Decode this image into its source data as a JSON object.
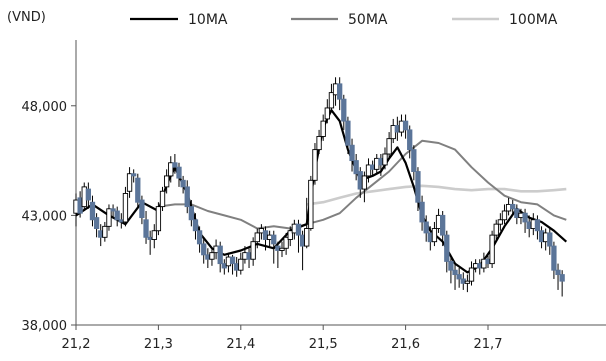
{
  "chart_data": {
    "type": "line",
    "unit_label": "(VND)",
    "x_ticks": [
      "21,2",
      "21,3",
      "21,4",
      "21,5",
      "21,6",
      "21,7"
    ],
    "y_ticks": [
      "38,000",
      "43,000",
      "48,000"
    ],
    "ylim": [
      38000,
      51000
    ],
    "xlim": [
      0,
      6.4
    ],
    "grid": false,
    "legend_position": "top",
    "candle_color": "#5b7599",
    "candles": [
      [
        0.0,
        43100,
        43700,
        42500,
        44000
      ],
      [
        0.05,
        43800,
        43100,
        42900,
        44100
      ],
      [
        0.1,
        43400,
        44300,
        43200,
        44500
      ],
      [
        0.15,
        44200,
        43700,
        43300,
        44500
      ],
      [
        0.2,
        43600,
        42800,
        42500,
        43900
      ],
      [
        0.25,
        42900,
        42400,
        42000,
        43100
      ],
      [
        0.3,
        42300,
        42000,
        41600,
        42600
      ],
      [
        0.35,
        42000,
        42500,
        41800,
        42700
      ],
      [
        0.4,
        42500,
        43300,
        42300,
        43500
      ],
      [
        0.45,
        43300,
        43200,
        42900,
        43500
      ],
      [
        0.5,
        43200,
        42800,
        42500,
        43400
      ],
      [
        0.55,
        42800,
        42700,
        42400,
        43100
      ],
      [
        0.6,
        42700,
        44000,
        42500,
        44300
      ],
      [
        0.65,
        44100,
        44900,
        43800,
        45200
      ],
      [
        0.7,
        44900,
        44800,
        44500,
        45100
      ],
      [
        0.75,
        44700,
        43600,
        43300,
        44900
      ],
      [
        0.8,
        43700,
        42900,
        42600,
        43900
      ],
      [
        0.85,
        42800,
        42000,
        41700,
        43200
      ],
      [
        0.9,
        42000,
        41900,
        41200,
        42300
      ],
      [
        0.95,
        41900,
        42300,
        41500,
        42600
      ],
      [
        1.0,
        42300,
        43400,
        42100,
        43600
      ],
      [
        1.05,
        43400,
        44100,
        43200,
        44300
      ],
      [
        1.1,
        44300,
        44800,
        44000,
        45100
      ],
      [
        1.15,
        44800,
        45400,
        44500,
        45700
      ],
      [
        1.2,
        45400,
        45200,
        44900,
        45800
      ],
      [
        1.25,
        45200,
        44700,
        44300,
        45400
      ],
      [
        1.3,
        44600,
        44300,
        44000,
        44800
      ],
      [
        1.35,
        44300,
        43400,
        43100,
        44600
      ],
      [
        1.4,
        43400,
        42800,
        42500,
        43700
      ],
      [
        1.45,
        42800,
        42300,
        41900,
        43100
      ],
      [
        1.5,
        42300,
        41700,
        41300,
        42500
      ],
      [
        1.55,
        41700,
        41200,
        40800,
        42000
      ],
      [
        1.6,
        41200,
        41000,
        40600,
        41500
      ],
      [
        1.65,
        41000,
        41300,
        40700,
        41500
      ],
      [
        1.7,
        41300,
        41600,
        41000,
        41900
      ],
      [
        1.75,
        41600,
        40800,
        40400,
        41800
      ],
      [
        1.8,
        40800,
        40600,
        40300,
        41000
      ],
      [
        1.85,
        40700,
        41100,
        40400,
        41300
      ],
      [
        1.9,
        41100,
        40800,
        40300,
        41200
      ],
      [
        1.95,
        40800,
        40500,
        40200,
        41100
      ],
      [
        2.0,
        40500,
        41000,
        40300,
        41300
      ],
      [
        2.05,
        41000,
        41300,
        40800,
        41600
      ],
      [
        2.1,
        41300,
        41000,
        40600,
        41500
      ],
      [
        2.15,
        41000,
        41800,
        40700,
        42000
      ],
      [
        2.2,
        41800,
        42200,
        41500,
        42400
      ],
      [
        2.25,
        42200,
        42400,
        41900,
        42600
      ],
      [
        2.3,
        42300,
        41900,
        41400,
        42500
      ],
      [
        2.35,
        41900,
        42100,
        41600,
        42300
      ],
      [
        2.4,
        42100,
        41700,
        40800,
        42300
      ],
      [
        2.45,
        41600,
        41400,
        40600,
        41800
      ],
      [
        2.5,
        41400,
        41500,
        41100,
        41800
      ],
      [
        2.55,
        41500,
        42000,
        41200,
        42200
      ],
      [
        2.6,
        41900,
        42300,
        41600,
        42500
      ],
      [
        2.65,
        42200,
        42600,
        41900,
        42800
      ],
      [
        2.7,
        42600,
        42100,
        41300,
        42800
      ],
      [
        2.75,
        42100,
        41600,
        40500,
        42300
      ],
      [
        2.8,
        41600,
        42400,
        41500,
        43800
      ],
      [
        2.85,
        42400,
        44600,
        42300,
        44800
      ],
      [
        2.9,
        44600,
        46000,
        44400,
        46300
      ],
      [
        2.95,
        46000,
        46600,
        45800,
        46900
      ],
      [
        3.0,
        46600,
        47300,
        46400,
        47600
      ],
      [
        3.05,
        47400,
        47900,
        47200,
        48300
      ],
      [
        3.1,
        47900,
        48600,
        47700,
        49000
      ],
      [
        3.15,
        48500,
        49000,
        48000,
        49300
      ],
      [
        3.2,
        49000,
        48300,
        47800,
        49300
      ],
      [
        3.25,
        48300,
        47300,
        46900,
        48500
      ],
      [
        3.3,
        47300,
        46200,
        45800,
        47500
      ],
      [
        3.35,
        46200,
        45500,
        45000,
        46500
      ],
      [
        3.4,
        45500,
        44900,
        44600,
        45800
      ],
      [
        3.45,
        45000,
        44200,
        43800,
        45200
      ],
      [
        3.5,
        44200,
        44800,
        43600,
        45000
      ],
      [
        3.55,
        44800,
        45300,
        44500,
        45600
      ],
      [
        3.6,
        45300,
        45100,
        44800,
        45500
      ],
      [
        3.65,
        45100,
        45600,
        44900,
        45800
      ],
      [
        3.7,
        45600,
        45300,
        44800,
        45800
      ],
      [
        3.75,
        45300,
        45800,
        45100,
        46100
      ],
      [
        3.8,
        45800,
        46500,
        45600,
        46800
      ],
      [
        3.85,
        46500,
        47100,
        46300,
        47400
      ],
      [
        3.9,
        47100,
        46800,
        46400,
        47500
      ],
      [
        3.95,
        46800,
        47300,
        46600,
        47600
      ],
      [
        4.0,
        47300,
        46900,
        46500,
        47600
      ],
      [
        4.05,
        46900,
        46000,
        45600,
        47100
      ],
      [
        4.1,
        46000,
        45000,
        44600,
        46200
      ],
      [
        4.15,
        45000,
        43600,
        43200,
        45200
      ],
      [
        4.2,
        43600,
        42700,
        42300,
        43900
      ],
      [
        4.25,
        42700,
        42200,
        41800,
        43000
      ],
      [
        4.3,
        42200,
        41800,
        41400,
        42500
      ],
      [
        4.35,
        41800,
        42400,
        41600,
        42700
      ],
      [
        4.4,
        42400,
        43000,
        42200,
        43300
      ],
      [
        4.45,
        43000,
        42100,
        41600,
        43200
      ],
      [
        4.5,
        42100,
        40900,
        40400,
        42300
      ],
      [
        4.55,
        40900,
        40500,
        39900,
        41200
      ],
      [
        4.6,
        40500,
        40300,
        39600,
        40800
      ],
      [
        4.65,
        40300,
        40100,
        39700,
        40600
      ],
      [
        4.7,
        40100,
        39900,
        39600,
        40400
      ],
      [
        4.75,
        39900,
        40000,
        39500,
        40300
      ],
      [
        4.8,
        40000,
        40600,
        39800,
        40900
      ],
      [
        4.85,
        40600,
        40800,
        40400,
        41000
      ],
      [
        4.9,
        40800,
        40600,
        40300,
        41000
      ],
      [
        4.95,
        40600,
        41000,
        40400,
        41300
      ],
      [
        5.0,
        41000,
        40800,
        40600,
        41200
      ],
      [
        5.05,
        40800,
        42100,
        40600,
        42300
      ],
      [
        5.1,
        42100,
        42600,
        41900,
        42800
      ],
      [
        5.15,
        42600,
        42800,
        42300,
        43100
      ],
      [
        5.2,
        42800,
        43200,
        42600,
        43500
      ],
      [
        5.25,
        43200,
        43500,
        43000,
        43800
      ],
      [
        5.3,
        43500,
        43300,
        43000,
        43700
      ],
      [
        5.35,
        43300,
        42900,
        42600,
        43500
      ],
      [
        5.4,
        42900,
        43100,
        42600,
        43300
      ],
      [
        5.45,
        43100,
        42700,
        42200,
        43300
      ],
      [
        5.5,
        42700,
        42400,
        42000,
        43000
      ],
      [
        5.55,
        42400,
        42800,
        42100,
        43100
      ],
      [
        5.6,
        42800,
        42300,
        41900,
        43000
      ],
      [
        5.65,
        42300,
        41800,
        41500,
        42500
      ],
      [
        5.7,
        41800,
        42200,
        41400,
        42400
      ],
      [
        5.75,
        42200,
        41600,
        41200,
        42400
      ],
      [
        5.8,
        41600,
        40500,
        40100,
        41800
      ],
      [
        5.85,
        40500,
        40300,
        39600,
        40800
      ],
      [
        5.9,
        40300,
        40000,
        39300,
        40500
      ]
    ],
    "series": [
      {
        "name": "10MA",
        "color": "#000000",
        "stroke_width": 2.2,
        "x": [
          0.0,
          0.2,
          0.4,
          0.6,
          0.8,
          1.0,
          1.1,
          1.2,
          1.35,
          1.5,
          1.65,
          1.8,
          2.0,
          2.2,
          2.4,
          2.6,
          2.8,
          2.9,
          3.0,
          3.1,
          3.2,
          3.3,
          3.45,
          3.6,
          3.7,
          3.8,
          3.9,
          4.0,
          4.1,
          4.2,
          4.3,
          4.45,
          4.6,
          4.75,
          4.9,
          5.05,
          5.2,
          5.35,
          5.5,
          5.65,
          5.8,
          5.95
        ],
        "y": [
          43000,
          43500,
          43000,
          42600,
          43600,
          43200,
          44400,
          45200,
          44000,
          42200,
          41500,
          41200,
          41400,
          41700,
          41500,
          42300,
          42600,
          45100,
          47000,
          47800,
          47300,
          46000,
          44600,
          44800,
          45000,
          45600,
          46100,
          45400,
          44300,
          43000,
          42300,
          41800,
          40800,
          40400,
          40700,
          41500,
          42500,
          43300,
          42900,
          42700,
          42300,
          41800
        ]
      },
      {
        "name": "50MA",
        "color": "#808080",
        "stroke_width": 2.0,
        "x": [
          1.0,
          1.2,
          1.4,
          1.6,
          1.8,
          2.0,
          2.2,
          2.4,
          2.6,
          2.8,
          3.0,
          3.2,
          3.4,
          3.6,
          3.8,
          4.0,
          4.2,
          4.4,
          4.6,
          4.8,
          5.0,
          5.2,
          5.4,
          5.6,
          5.8,
          5.95
        ],
        "y": [
          43400,
          43500,
          43500,
          43200,
          43000,
          42800,
          42400,
          42500,
          42400,
          42600,
          42800,
          43100,
          43800,
          44400,
          45000,
          45800,
          46400,
          46300,
          46000,
          45200,
          44500,
          43900,
          43600,
          43500,
          43000,
          42800
        ]
      },
      {
        "name": "100MA",
        "color": "#cccccc",
        "stroke_width": 2.6,
        "x": [
          2.8,
          3.0,
          3.2,
          3.4,
          3.6,
          3.8,
          4.0,
          4.2,
          4.4,
          4.6,
          4.8,
          5.0,
          5.2,
          5.4,
          5.6,
          5.8,
          5.95
        ],
        "y": [
          43500,
          43600,
          43800,
          44000,
          44100,
          44200,
          44300,
          44350,
          44300,
          44200,
          44150,
          44200,
          44200,
          44100,
          44100,
          44150,
          44200
        ]
      }
    ]
  }
}
